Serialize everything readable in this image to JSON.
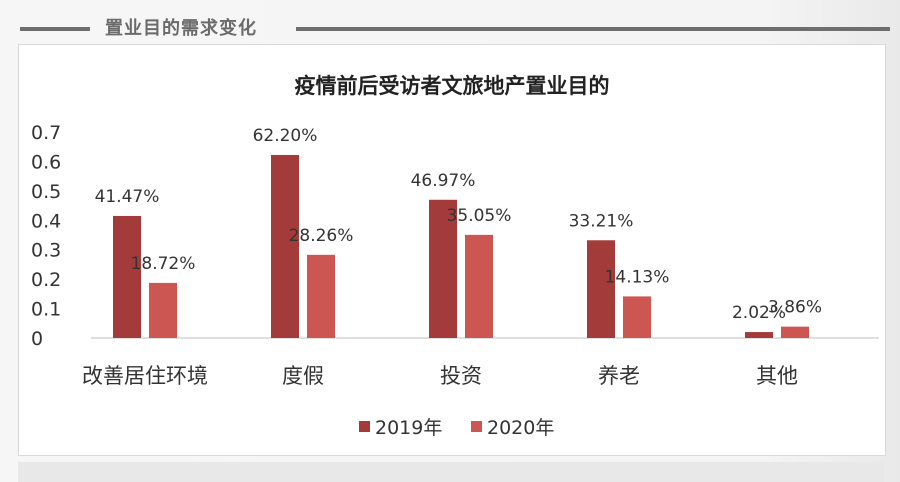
{
  "section": {
    "title": "置业目的需求变化"
  },
  "chart_data": {
    "type": "bar",
    "title": "疫情前后受访者文旅地产置业目的",
    "categories": [
      "改善居住环境",
      "度假",
      "投资",
      "养老",
      "其他"
    ],
    "series": [
      {
        "name": "2019年",
        "color": "#a33b3b",
        "values": [
          0.4147,
          0.622,
          0.4697,
          0.3321,
          0.0202
        ],
        "labels": [
          "41.47%",
          "62.20%",
          "46.97%",
          "33.21%",
          "2.02%"
        ]
      },
      {
        "name": "2020年",
        "color": "#cc5652",
        "values": [
          0.1872,
          0.2826,
          0.3505,
          0.1413,
          0.0386
        ],
        "labels": [
          "18.72%",
          "28.26%",
          "35.05%",
          "14.13%",
          "3.86%"
        ]
      }
    ],
    "yticks": [
      "0",
      "0.1",
      "0.2",
      "0.3",
      "0.4",
      "0.5",
      "0.6",
      "0.7"
    ],
    "ylim": [
      0,
      0.7
    ],
    "xlabel": "",
    "ylabel": "",
    "legend_position": "bottom-center",
    "grid": false
  }
}
